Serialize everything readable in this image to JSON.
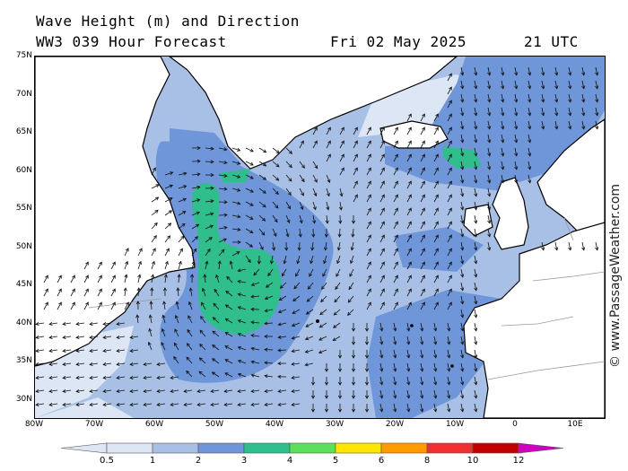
{
  "header": {
    "title": "Wave Height (m) and Direction",
    "model": "WW3 039 Hour Forecast",
    "date": "Fri 02 May 2025",
    "time": "21 UTC"
  },
  "credit": "© www.PassageWeather.com",
  "map": {
    "lat_labels": [
      "75N",
      "70N",
      "65N",
      "60N",
      "55N",
      "50N",
      "45N",
      "40N",
      "35N",
      "30N"
    ],
    "lon_labels": [
      "80W",
      "70W",
      "60W",
      "50W",
      "40W",
      "30W",
      "20W",
      "10W",
      "0",
      "10E"
    ],
    "lat_range": [
      28,
      75
    ],
    "lon_range": [
      -80,
      12
    ],
    "land_color": "#ffffff",
    "coast_color": "#000000",
    "border_color": "#9a9a9a",
    "arrow_color": "#111111"
  },
  "legend": {
    "labels": [
      "0.5",
      "1",
      "2",
      "3",
      "4",
      "5",
      "6",
      "8",
      "10",
      "12"
    ],
    "colors": [
      "#dce6f5",
      "#a9c0e6",
      "#6e96d8",
      "#2fbe8c",
      "#5ce05c",
      "#ffe600",
      "#ff9b00",
      "#f03030",
      "#c00000",
      "#d000c0"
    ]
  }
}
